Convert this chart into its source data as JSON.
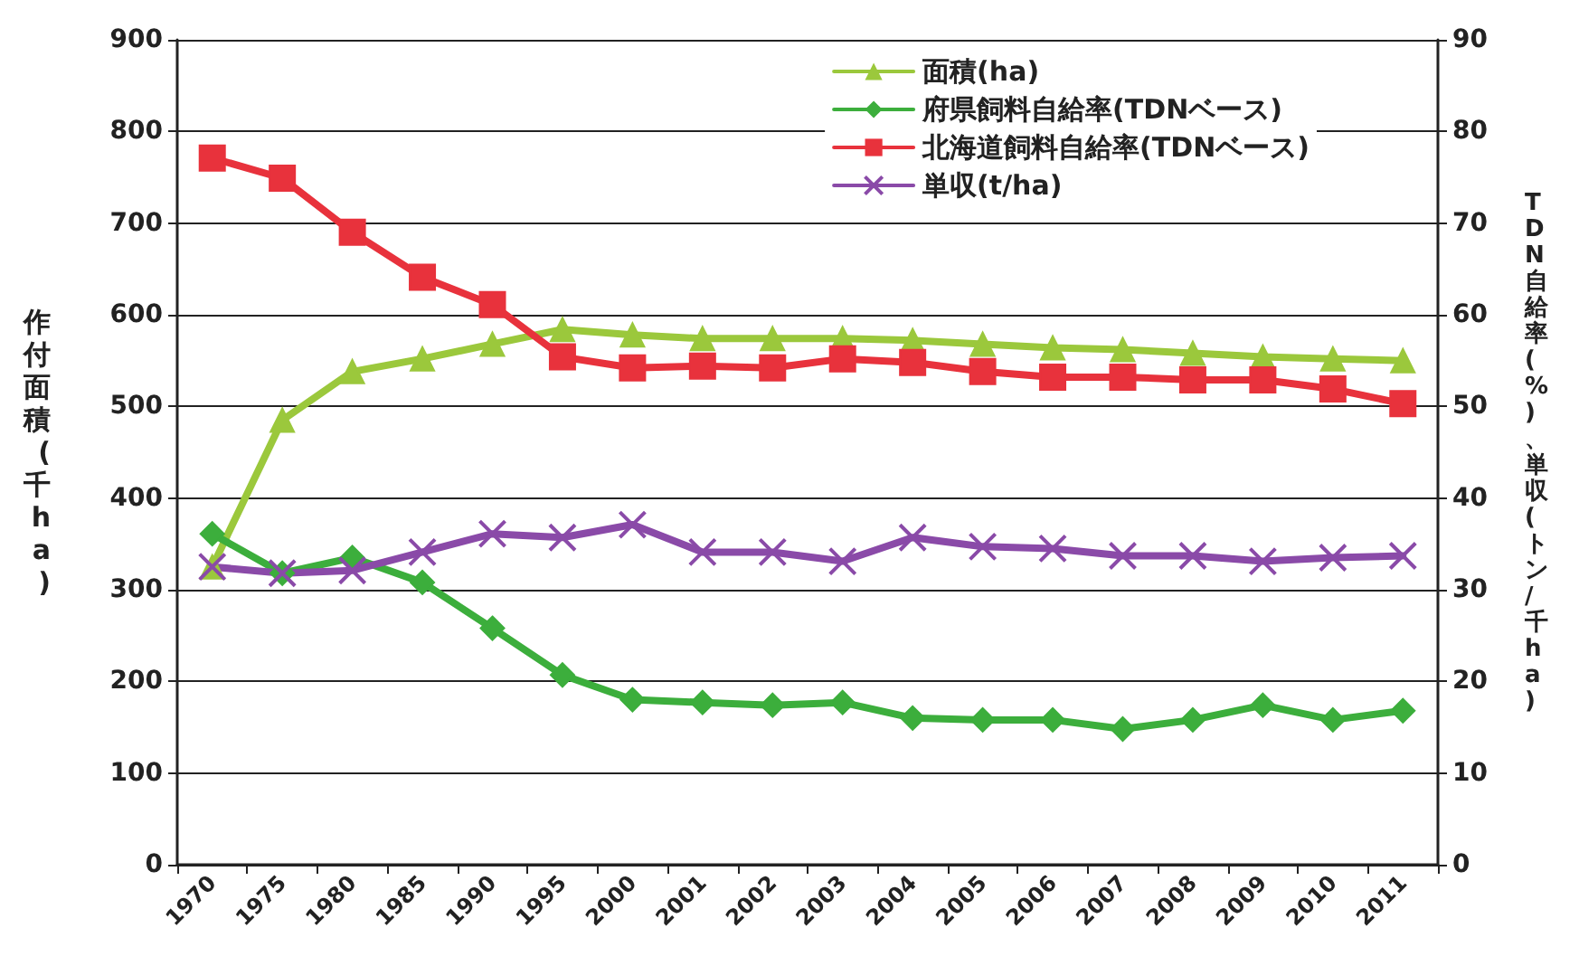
{
  "chart_data": {
    "type": "line",
    "categories": [
      "1970",
      "1975",
      "1980",
      "1985",
      "1990",
      "1995",
      "2000",
      "2001",
      "2002",
      "2003",
      "2004",
      "2005",
      "2006",
      "2007",
      "2008",
      "2009",
      "2010",
      "2011"
    ],
    "series": [
      {
        "name": "面積(ha)",
        "color": "#9bc83c",
        "marker": "triangle",
        "values": [
          325,
          485,
          538,
          552,
          568,
          584,
          578,
          574,
          574,
          574,
          572,
          568,
          564,
          562,
          558,
          554,
          552,
          550
        ]
      },
      {
        "name": "府県飼料自給率(TDNベース)",
        "color": "#3cae3c",
        "marker": "diamond",
        "axis": "y2",
        "values": [
          36.1,
          31.8,
          33.5,
          30.8,
          25.8,
          20.7,
          18.0,
          17.7,
          17.4,
          17.7,
          16.0,
          15.8,
          15.8,
          14.8,
          15.8,
          17.4,
          15.8,
          16.8
        ]
      },
      {
        "name": "北海道飼料自給率(TDNベース)",
        "color": "#e8323c",
        "marker": "square",
        "axis": "y2",
        "values": [
          77.1,
          74.9,
          69.0,
          64.1,
          61.1,
          55.4,
          54.2,
          54.4,
          54.2,
          55.2,
          54.8,
          53.8,
          53.2,
          53.2,
          52.9,
          52.9,
          51.9,
          50.3
        ]
      },
      {
        "name": "単収(t/ha)",
        "color": "#8a4aa8",
        "marker": "cross",
        "axis": "y2",
        "values": [
          32.5,
          31.8,
          32.1,
          34.1,
          36.1,
          35.7,
          37.1,
          34.1,
          34.1,
          33.1,
          35.7,
          34.7,
          34.5,
          33.7,
          33.7,
          33.1,
          33.5,
          33.7
        ]
      }
    ],
    "ylabel": "作付面積(千ha)",
    "y2label": "TDN自給率(%)、単収(トン/千ha)",
    "ylim": [
      0,
      900
    ],
    "yticks": [
      0,
      100,
      200,
      300,
      400,
      500,
      600,
      700,
      800,
      900
    ],
    "y2lim": [
      0,
      90
    ],
    "y2ticks": [
      0,
      10,
      20,
      30,
      40,
      50,
      60,
      70,
      80,
      90
    ],
    "grid": "y",
    "legend": "top right",
    "line_style": "solid"
  }
}
